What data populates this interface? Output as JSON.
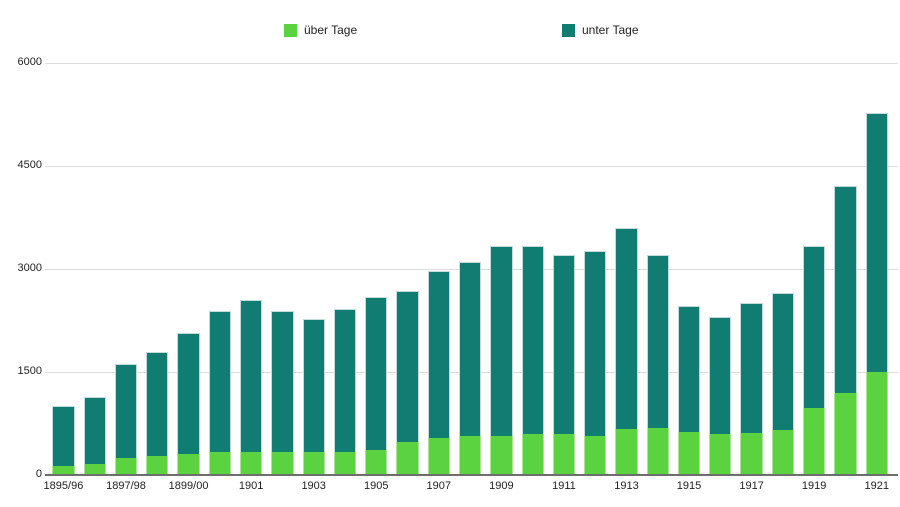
{
  "legend": {
    "items": [
      {
        "label": "über Tage",
        "color": "#5BD23F"
      },
      {
        "label": "unter Tage",
        "color": "#107C72"
      }
    ]
  },
  "axes": {
    "y_tick_labels": [
      "0",
      "1500",
      "3000",
      "4500",
      "6000"
    ],
    "x_tick_labels": [
      "1895/96",
      "1897/98",
      "1899/00",
      "1901",
      "1903",
      "1905",
      "1907",
      "1909",
      "1911",
      "1913",
      "1915",
      "1917",
      "1919",
      "1921"
    ]
  },
  "chart_data": {
    "type": "bar",
    "stacked": true,
    "title": "",
    "xlabel": "",
    "ylabel": "",
    "ylim": [
      0,
      6000
    ],
    "yticks": [
      0,
      1500,
      3000,
      4500,
      6000
    ],
    "grid": true,
    "legend_position": "top",
    "x_label_every": 2,
    "categories": [
      "1895/96",
      "1896/97",
      "1897/98",
      "1898/99",
      "1899/00",
      "1900",
      "1901",
      "1902",
      "1903",
      "1904",
      "1905",
      "1906",
      "1907",
      "1908",
      "1909",
      "1910",
      "1911",
      "1912",
      "1913",
      "1914",
      "1915",
      "1916",
      "1917",
      "1918",
      "1919",
      "1920",
      "1921"
    ],
    "series": [
      {
        "name": "über Tage",
        "color": "#5BD23F",
        "values": [
          130,
          160,
          240,
          265,
          295,
          325,
          330,
          330,
          325,
          325,
          355,
          480,
          535,
          565,
          565,
          585,
          585,
          565,
          660,
          675,
          625,
          590,
          610,
          650,
          970,
          1190,
          1500
        ]
      },
      {
        "name": "unter Tage",
        "color": "#107C72",
        "values": [
          870,
          970,
          1370,
          1515,
          1765,
          2055,
          2220,
          2050,
          1945,
          2085,
          2225,
          2200,
          2425,
          2535,
          2765,
          2745,
          2615,
          2695,
          2930,
          2525,
          1825,
          1710,
          1890,
          2000,
          2360,
          3010,
          3770
        ]
      }
    ],
    "totals": [
      1000,
      1130,
      1610,
      1780,
      2060,
      2380,
      2550,
      2380,
      2270,
      2410,
      2580,
      2680,
      2960,
      3100,
      3330,
      3330,
      3200,
      3260,
      3590,
      3200,
      2450,
      2300,
      2500,
      2650,
      3330,
      4200,
      5270
    ]
  }
}
